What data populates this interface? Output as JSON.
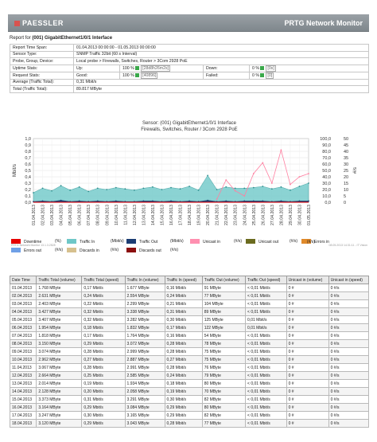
{
  "header": {
    "brand": "PAESSLER",
    "product": "PRTG Network Monitor"
  },
  "report_for": {
    "label": "Report for",
    "sensor": "(001) GigabitEthernet1/0/1 Interface"
  },
  "info": {
    "time_span_label": "Report Time Span:",
    "time_span": "01.04.2013 00:00:00 - 01.05.2013 00:00:00",
    "sensor_type_label": "Sensor Type:",
    "sensor_type": "SNMP Traffic 32bit (60 s Interval)",
    "probe_label": "Probe, Group, Device:",
    "probe": "Local probe > Firewalls, Switches, Router > 3Com 2928 PoE",
    "uptime_label": "Uptime Stats:",
    "up_label": "Up:",
    "up_pct": "100 %",
    "up_value": "[28d8h26m2s]",
    "down_label": "Down:",
    "down_pct": "0 %",
    "down_value": "[0s]",
    "request_label": "Request Stats:",
    "good_label": "Good:",
    "good_pct": "100 %",
    "good_value": "[40896]",
    "failed_label": "Failed:",
    "failed_pct": "0 %",
    "failed_value": "[0]",
    "average_label": "Average (Traffic Total):",
    "average": "0,31 Mbit/s",
    "total_label": "Total (Traffic Total):",
    "total": "89.817 MByte"
  },
  "chart_data": {
    "type": "area",
    "title": "Sensor: (001) GigabitEthernet1/0/1 Interface",
    "subtitle": "Firewalls, Switches, Router / 3Com 2928 PoE",
    "ylabel": "Mbit/s",
    "ylabel_right2": "#/s",
    "ylim": [
      0,
      1
    ],
    "y_ticks": [
      "1,0",
      "0,9",
      "0,8",
      "0,7",
      "0,6",
      "0,5",
      "0,4",
      "0,3",
      "0,2",
      "0,1",
      "0,0"
    ],
    "y_right1_ticks": [
      "100,0",
      "90,0",
      "80,0",
      "70,0",
      "60,0",
      "50,0",
      "40,0",
      "30,0",
      "20,0",
      "10,0",
      "0,0"
    ],
    "y_right2_ticks": [
      "50",
      "45",
      "40",
      "35",
      "30",
      "25",
      "20",
      "15",
      "10",
      "5",
      "0"
    ],
    "categories": [
      "01.04.2013",
      "02.04.2013",
      "03.04.2013",
      "04.04.2013",
      "05.04.2013",
      "06.04.2013",
      "07.04.2013",
      "08.04.2013",
      "09.04.2013",
      "10.04.2013",
      "11.04.2013",
      "12.04.2013",
      "13.04.2013",
      "14.04.2013",
      "15.04.2013",
      "16.04.2013",
      "17.04.2013",
      "18.04.2013",
      "19.04.2013",
      "20.04.2013",
      "21.04.2013",
      "22.04.2013",
      "23.04.2013",
      "24.04.2013",
      "25.04.2013",
      "26.04.2013",
      "27.04.2013",
      "28.04.2013",
      "29.04.2013",
      "30.04.2013",
      "01.05.2013"
    ],
    "series": [
      {
        "name": "Traffic In",
        "color": "#7fcfcf",
        "values": [
          0.15,
          0.22,
          0.18,
          0.26,
          0.19,
          0.24,
          0.17,
          0.22,
          0.2,
          0.23,
          0.21,
          0.19,
          0.22,
          0.24,
          0.2,
          0.23,
          0.21,
          0.25,
          0.19,
          0.42,
          0.2,
          0.24,
          0.22,
          0.22,
          0.23,
          0.25,
          0.21,
          0.24,
          0.19,
          0.25,
          0.3
        ]
      },
      {
        "name": "Traffic Out",
        "color": "#1c3d73",
        "values": [
          0.01,
          0.02,
          0.01,
          0.03,
          0.01,
          0.02,
          0.01,
          0.02,
          0.01,
          0.02,
          0.01,
          0.01,
          0.02,
          0.02,
          0.01,
          0.02,
          0.01,
          0.02,
          0.01,
          0.03,
          0.01,
          0.02,
          0.01,
          0.02,
          0.02,
          0.02,
          0.01,
          0.02,
          0.01,
          0.02,
          0.02
        ]
      },
      {
        "name": "Unicast in",
        "color": "#ff7fa0",
        "values": [
          null,
          null,
          null,
          null,
          null,
          null,
          null,
          null,
          null,
          null,
          null,
          null,
          null,
          null,
          null,
          null,
          null,
          null,
          null,
          null,
          0.05,
          0.35,
          0.18,
          0.1,
          0.45,
          0.62,
          0.3,
          0.82,
          0.28,
          0.4,
          0.45
        ]
      }
    ],
    "legend": [
      "Downtime",
      "Traffic In",
      "Traffic Out",
      "Unicast in",
      "Unicast out",
      "Errors in",
      "Errors out",
      "Discards in",
      "Discards out"
    ]
  },
  "chart_footer": {
    "left": "PRTG Network Monitor 13.1.3.2528",
    "right": "08.05.2013 14:31:11 - IT Vision"
  },
  "legend": {
    "downtime": {
      "label": "Downtime",
      "unit": "(%)",
      "color": "#e60000"
    },
    "traffic_in": {
      "label": "Traffic In",
      "unit": "(Mbit/s)",
      "color": "#6fc7c7"
    },
    "traffic_out": {
      "label": "Traffic Out",
      "unit": "(Mbit/s)",
      "color": "#1c3d73"
    },
    "unicast_in": {
      "label": "Unicast in",
      "unit": "(#/s)",
      "color": "#ff8fb0"
    },
    "unicast_out": {
      "label": "Unicast out",
      "unit": "(#/s)",
      "color": "#6b6b1f"
    },
    "errors_in": {
      "label": "Errors in",
      "unit": "(#/s)",
      "color": "#e08a2a"
    },
    "errors_out": {
      "label": "Errors out",
      "unit": "(#/s)",
      "color": "#6fa0e6"
    },
    "discards_in": {
      "label": "Discards in",
      "unit": "(#/s)",
      "color": "#d6c08e"
    },
    "discards_out": {
      "label": "Discards out",
      "unit": "(#/s)",
      "color": "#8b0f0f"
    }
  },
  "table": {
    "headers": [
      "Date Time",
      "Traffic Total (volume)",
      "Traffic Total (speed)",
      "Traffic In (volume)",
      "Traffic In (speed)",
      "Traffic Out (volume)",
      "Traffic Out (speed)",
      "Unicast in (volume)",
      "Unicast in (speed)"
    ],
    "rows": [
      [
        "01.04.2013",
        "1.768 MByte",
        "0,17 Mbit/s",
        "1.677 MByte",
        "0,16 Mbit/s",
        "91 MByte",
        "< 0,01 Mbit/s",
        "0 #",
        "0 #/s"
      ],
      [
        "02.04.2013",
        "2.631 MByte",
        "0,24 Mbit/s",
        "2.554 MByte",
        "0,24 Mbit/s",
        "77 MByte",
        "< 0,01 Mbit/s",
        "0 #",
        "0 #/s"
      ],
      [
        "03.04.2013",
        "2.403 MByte",
        "0,22 Mbit/s",
        "2.299 MByte",
        "0,21 Mbit/s",
        "104 MByte",
        "< 0,01 Mbit/s",
        "0 #",
        "0 #/s"
      ],
      [
        "04.04.2013",
        "3.427 MByte",
        "0,32 Mbit/s",
        "3.338 MByte",
        "0,31 Mbit/s",
        "89 MByte",
        "< 0,01 Mbit/s",
        "0 #",
        "0 #/s"
      ],
      [
        "05.04.2013",
        "3.407 MByte",
        "0,32 Mbit/s",
        "3.282 MByte",
        "0,30 Mbit/s",
        "125 MByte",
        "0,01 Mbit/s",
        "0 #",
        "0 #/s"
      ],
      [
        "06.04.2013",
        "1.954 MByte",
        "0,18 Mbit/s",
        "1.832 MByte",
        "0,17 Mbit/s",
        "122 MByte",
        "0,01 Mbit/s",
        "0 #",
        "0 #/s"
      ],
      [
        "07.04.2013",
        "1.818 MByte",
        "0,17 Mbit/s",
        "1.764 MByte",
        "0,16 Mbit/s",
        "54 MByte",
        "< 0,01 Mbit/s",
        "0 #",
        "0 #/s"
      ],
      [
        "08.04.2013",
        "3.150 MByte",
        "0,29 Mbit/s",
        "3.072 MByte",
        "0,28 Mbit/s",
        "78 MByte",
        "< 0,01 Mbit/s",
        "0 #",
        "0 #/s"
      ],
      [
        "09.04.2013",
        "3.074 MByte",
        "0,28 Mbit/s",
        "2.999 MByte",
        "0,28 Mbit/s",
        "75 MByte",
        "< 0,01 Mbit/s",
        "0 #",
        "0 #/s"
      ],
      [
        "10.04.2013",
        "2.962 MByte",
        "0,27 Mbit/s",
        "2.887 MByte",
        "0,27 Mbit/s",
        "75 MByte",
        "< 0,01 Mbit/s",
        "0 #",
        "0 #/s"
      ],
      [
        "11.04.2013",
        "3.067 MByte",
        "0,28 Mbit/s",
        "2.991 MByte",
        "0,28 Mbit/s",
        "76 MByte",
        "< 0,01 Mbit/s",
        "0 #",
        "0 #/s"
      ],
      [
        "12.04.2013",
        "2.664 MByte",
        "0,25 Mbit/s",
        "2.585 MByte",
        "0,24 Mbit/s",
        "79 MByte",
        "< 0,01 Mbit/s",
        "0 #",
        "0 #/s"
      ],
      [
        "13.04.2013",
        "2.014 MByte",
        "0,19 Mbit/s",
        "1.934 MByte",
        "0,18 Mbit/s",
        "80 MByte",
        "< 0,01 Mbit/s",
        "0 #",
        "0 #/s"
      ],
      [
        "14.04.2013",
        "2.128 MByte",
        "0,20 Mbit/s",
        "2.058 MByte",
        "0,19 Mbit/s",
        "70 MByte",
        "< 0,01 Mbit/s",
        "0 #",
        "0 #/s"
      ],
      [
        "15.04.2013",
        "3.373 MByte",
        "0,31 Mbit/s",
        "3.291 MByte",
        "0,30 Mbit/s",
        "82 MByte",
        "< 0,01 Mbit/s",
        "0 #",
        "0 #/s"
      ],
      [
        "16.04.2013",
        "3.164 MByte",
        "0,29 Mbit/s",
        "3.084 MByte",
        "0,29 Mbit/s",
        "80 MByte",
        "< 0,01 Mbit/s",
        "0 #",
        "0 #/s"
      ],
      [
        "17.04.2013",
        "3.247 MByte",
        "0,30 Mbit/s",
        "3.165 MByte",
        "0,29 Mbit/s",
        "82 MByte",
        "< 0,01 Mbit/s",
        "0 #",
        "0 #/s"
      ],
      [
        "18.04.2013",
        "3.120 MByte",
        "0,29 Mbit/s",
        "3.043 MByte",
        "0,28 Mbit/s",
        "77 MByte",
        "< 0,01 Mbit/s",
        "0 #",
        "0 #/s"
      ]
    ]
  }
}
